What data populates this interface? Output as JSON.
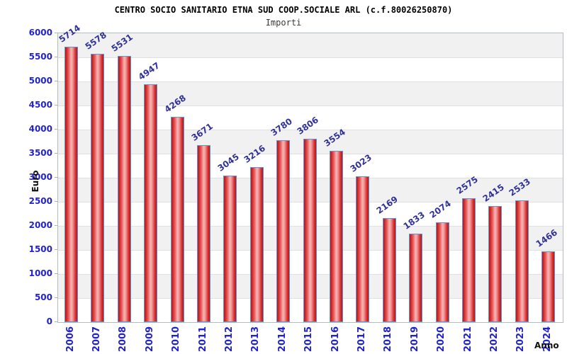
{
  "title": "CENTRO SOCIO SANITARIO ETNA SUD COOP.SOCIALE ARL (c.f.80026250870)",
  "subtitle": "Importi",
  "chart_data": {
    "type": "bar",
    "title": "CENTRO SOCIO SANITARIO ETNA SUD COOP.SOCIALE ARL (c.f.80026250870)",
    "subtitle": "Importi",
    "xlabel": "Anno",
    "ylabel": "Euro",
    "categories": [
      "2006",
      "2007",
      "2008",
      "2009",
      "2010",
      "2011",
      "2012",
      "2013",
      "2014",
      "2015",
      "2016",
      "2017",
      "2018",
      "2019",
      "2020",
      "2021",
      "2022",
      "2023",
      "2024"
    ],
    "values": [
      5714,
      5578,
      5531,
      4947,
      4268,
      3671,
      3045,
      3216,
      3780,
      3806,
      3554,
      3023,
      2169,
      1833,
      2074,
      2575,
      2415,
      2533,
      1466
    ],
    "bar_value_labels_shown": true,
    "ylim": [
      0,
      6000
    ],
    "ytick_step": 500,
    "yticks": [
      6000,
      5500,
      5000,
      4500,
      4000,
      3500,
      3000,
      2500,
      2000,
      1500,
      1000,
      500,
      0
    ],
    "grid": "horizontal-bands-alternating",
    "legend_position": "none",
    "colors": {
      "bar_fill_dark": "#b51717",
      "bar_fill_mid": "#d42a2a",
      "bar_fill_highlight": "#f4b4b4",
      "bar_border": "#5e97d9",
      "value_label": "#32329b",
      "axis_tick_label": "#2323cc",
      "band_gray": "#f1f1f1",
      "band_white": "#ffffff",
      "gridline": "#e0e0e0",
      "title_text": "#000000",
      "axis_title_text": "#111111"
    }
  }
}
